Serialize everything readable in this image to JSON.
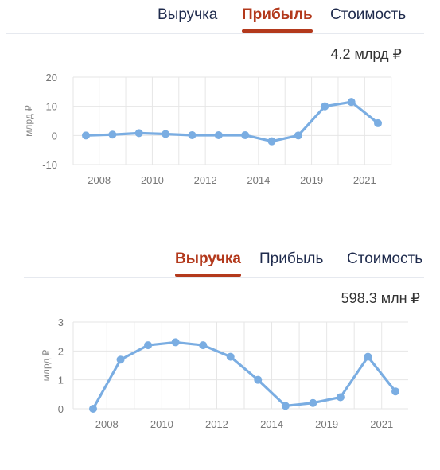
{
  "profit_panel": {
    "tabs": [
      {
        "label": "Выручка",
        "active": false
      },
      {
        "label": "Прибыль",
        "active": true
      },
      {
        "label": "Стоимость",
        "active": false
      }
    ],
    "summary": "4.2 млрд ₽"
  },
  "revenue_panel": {
    "tabs": [
      {
        "label": "Выручка",
        "active": true
      },
      {
        "label": "Прибыль",
        "active": false
      },
      {
        "label": "Стоимость",
        "active": false
      }
    ],
    "summary": "598.3 млн ₽"
  },
  "colors": {
    "line": "#7aade2",
    "active_tab": "#b3391c",
    "tab": "#1f2b4d",
    "grid": "#e6e6e6"
  },
  "chart_data": [
    {
      "type": "line",
      "ylabel": "млрд ₽",
      "ylim": [
        -10,
        20
      ],
      "yticks": [
        20,
        10,
        0,
        -10
      ],
      "x_tick_labels": [
        "2008",
        "2010",
        "2012",
        "2014",
        "2019",
        "2021"
      ],
      "points_count": 12,
      "values": [
        0,
        0.3,
        0.8,
        0.5,
        0.1,
        0.1,
        0.1,
        -2,
        0,
        10,
        11.5,
        4.2
      ],
      "grid": true
    },
    {
      "type": "line",
      "ylabel": "млрд ₽",
      "ylim": [
        0,
        3
      ],
      "yticks": [
        3,
        2,
        1,
        0
      ],
      "x_tick_labels": [
        "2008",
        "2010",
        "2012",
        "2014",
        "2019",
        "2021"
      ],
      "points_count": 12,
      "values": [
        0,
        1.7,
        2.2,
        2.3,
        2.2,
        1.8,
        1.0,
        0.1,
        0.2,
        0.4,
        1.8,
        0.6
      ],
      "grid": true
    }
  ]
}
